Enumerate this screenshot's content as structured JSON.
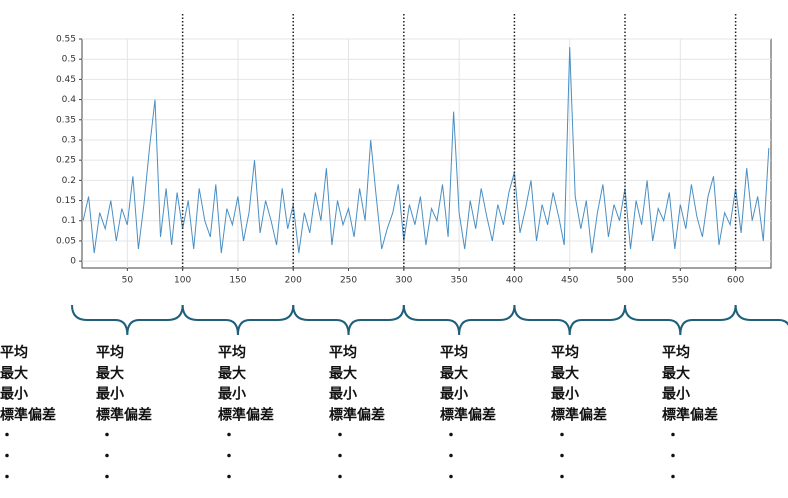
{
  "chart_data": {
    "type": "line",
    "x": [
      10,
      15,
      20,
      25,
      30,
      35,
      40,
      45,
      50,
      55,
      60,
      65,
      70,
      75,
      80,
      85,
      90,
      95,
      100,
      105,
      110,
      115,
      120,
      125,
      130,
      135,
      140,
      145,
      150,
      155,
      160,
      165,
      170,
      175,
      180,
      185,
      190,
      195,
      200,
      205,
      210,
      215,
      220,
      225,
      230,
      235,
      240,
      245,
      250,
      255,
      260,
      265,
      270,
      275,
      280,
      285,
      290,
      295,
      300,
      305,
      310,
      315,
      320,
      325,
      330,
      335,
      340,
      345,
      350,
      355,
      360,
      365,
      370,
      375,
      380,
      385,
      390,
      395,
      400,
      405,
      410,
      415,
      420,
      425,
      430,
      435,
      440,
      445,
      450,
      455,
      460,
      465,
      470,
      475,
      480,
      485,
      490,
      495,
      500,
      505,
      510,
      515,
      520,
      525,
      530,
      535,
      540,
      545,
      550,
      555,
      560,
      565,
      570,
      575,
      580,
      585,
      590,
      595,
      600,
      605,
      610,
      615,
      620,
      625,
      630
    ],
    "series": [
      {
        "color": "#4a8fc4",
        "values": [
          0.1,
          0.16,
          0.02,
          0.12,
          0.08,
          0.15,
          0.05,
          0.13,
          0.09,
          0.21,
          0.03,
          0.14,
          0.28,
          0.4,
          0.06,
          0.18,
          0.04,
          0.17,
          0.08,
          0.15,
          0.03,
          0.18,
          0.1,
          0.06,
          0.19,
          0.02,
          0.13,
          0.09,
          0.16,
          0.05,
          0.12,
          0.25,
          0.07,
          0.15,
          0.1,
          0.04,
          0.18,
          0.08,
          0.14,
          0.02,
          0.12,
          0.07,
          0.17,
          0.1,
          0.23,
          0.04,
          0.15,
          0.09,
          0.13,
          0.06,
          0.18,
          0.1,
          0.3,
          0.16,
          0.03,
          0.08,
          0.12,
          0.19,
          0.05,
          0.14,
          0.09,
          0.16,
          0.04,
          0.13,
          0.1,
          0.19,
          0.06,
          0.37,
          0.12,
          0.03,
          0.15,
          0.08,
          0.18,
          0.11,
          0.05,
          0.14,
          0.09,
          0.17,
          0.22,
          0.07,
          0.13,
          0.2,
          0.05,
          0.14,
          0.09,
          0.17,
          0.11,
          0.04,
          0.53,
          0.16,
          0.08,
          0.15,
          0.02,
          0.12,
          0.19,
          0.06,
          0.14,
          0.1,
          0.18,
          0.03,
          0.15,
          0.09,
          0.2,
          0.05,
          0.13,
          0.1,
          0.17,
          0.03,
          0.14,
          0.08,
          0.19,
          0.11,
          0.06,
          0.16,
          0.21,
          0.04,
          0.12,
          0.09,
          0.18,
          0.07,
          0.23,
          0.1,
          0.16,
          0.05,
          0.28
        ]
      }
    ],
    "xlim": [
      9,
      632
    ],
    "ylim": [
      -0.017,
      0.55
    ],
    "xticks": [
      50,
      100,
      150,
      200,
      250,
      300,
      350,
      400,
      450,
      500,
      550,
      600
    ],
    "yticks": [
      0,
      0.05,
      0.1,
      0.15,
      0.2,
      0.25,
      0.3,
      0.35,
      0.4,
      0.45,
      0.5,
      0.55
    ],
    "grid": true,
    "dividers": [
      100,
      200,
      300,
      400,
      500,
      600
    ],
    "stats_labels": [
      "平均",
      "最大",
      "最小",
      "標準偏差",
      "・",
      "・",
      "・"
    ]
  }
}
